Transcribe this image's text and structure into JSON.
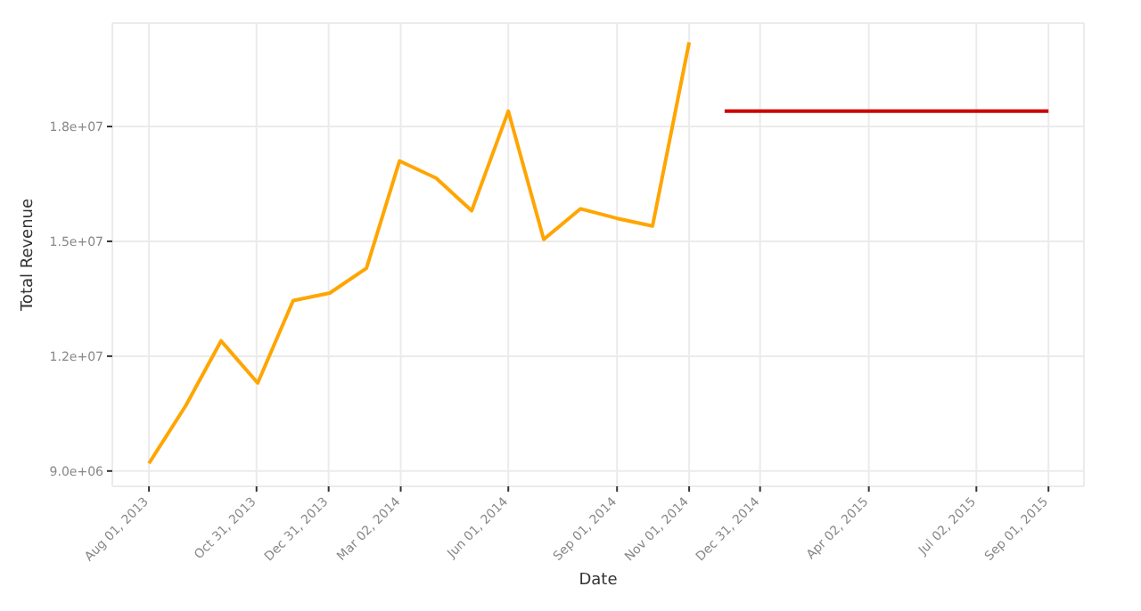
{
  "chart_data": {
    "type": "line",
    "xlabel": "Date",
    "ylabel": "Total Revenue",
    "series": [
      {
        "color": "#ffa500",
        "x": [
          "2013-08-01",
          "2013-09-01",
          "2013-10-01",
          "2013-11-01",
          "2013-12-01",
          "2014-01-01",
          "2014-02-01",
          "2014-03-01",
          "2014-04-01",
          "2014-05-01",
          "2014-06-01",
          "2014-07-01",
          "2014-08-01",
          "2014-09-01",
          "2014-10-01",
          "2014-11-01"
        ],
        "values": [
          9200000,
          10700000,
          12400000,
          11300000,
          13450000,
          13650000,
          14300000,
          17100000,
          16650000,
          15800000,
          18400000,
          15050000,
          15850000,
          15600000,
          15400000,
          20200000
        ]
      },
      {
        "color": "#cc0000",
        "x": [
          "2014-12-01",
          "2015-09-01"
        ],
        "values": [
          18400000,
          18400000
        ]
      }
    ],
    "xlim": [
      "2013-07-01",
      "2015-10-01"
    ],
    "xticks": [
      {
        "value": "2013-08-01",
        "label": "Aug 01, 2013"
      },
      {
        "value": "2013-10-31",
        "label": "Oct 31, 2013"
      },
      {
        "value": "2013-12-31",
        "label": "Dec 31, 2013"
      },
      {
        "value": "2014-03-02",
        "label": "Mar 02, 2014"
      },
      {
        "value": "2014-06-01",
        "label": "Jun 01, 2014"
      },
      {
        "value": "2014-09-01",
        "label": "Sep 01, 2014"
      },
      {
        "value": "2014-11-01",
        "label": "Nov 01, 2014"
      },
      {
        "value": "2014-12-31",
        "label": "Dec 31, 2014"
      },
      {
        "value": "2015-04-02",
        "label": "Apr 02, 2015"
      },
      {
        "value": "2015-07-02",
        "label": "Jul 02, 2015"
      },
      {
        "value": "2015-09-01",
        "label": "Sep 01, 2015"
      }
    ],
    "ylim": [
      8600000,
      20700000
    ],
    "yticks": [
      {
        "value": 9000000,
        "label": "9.0e+06"
      },
      {
        "value": 12000000,
        "label": "1.2e+07"
      },
      {
        "value": 15000000,
        "label": "1.5e+07"
      },
      {
        "value": 18000000,
        "label": "1.8e+07"
      }
    ],
    "grid": true,
    "legend": false,
    "marker": "none",
    "line_style": "solid"
  }
}
